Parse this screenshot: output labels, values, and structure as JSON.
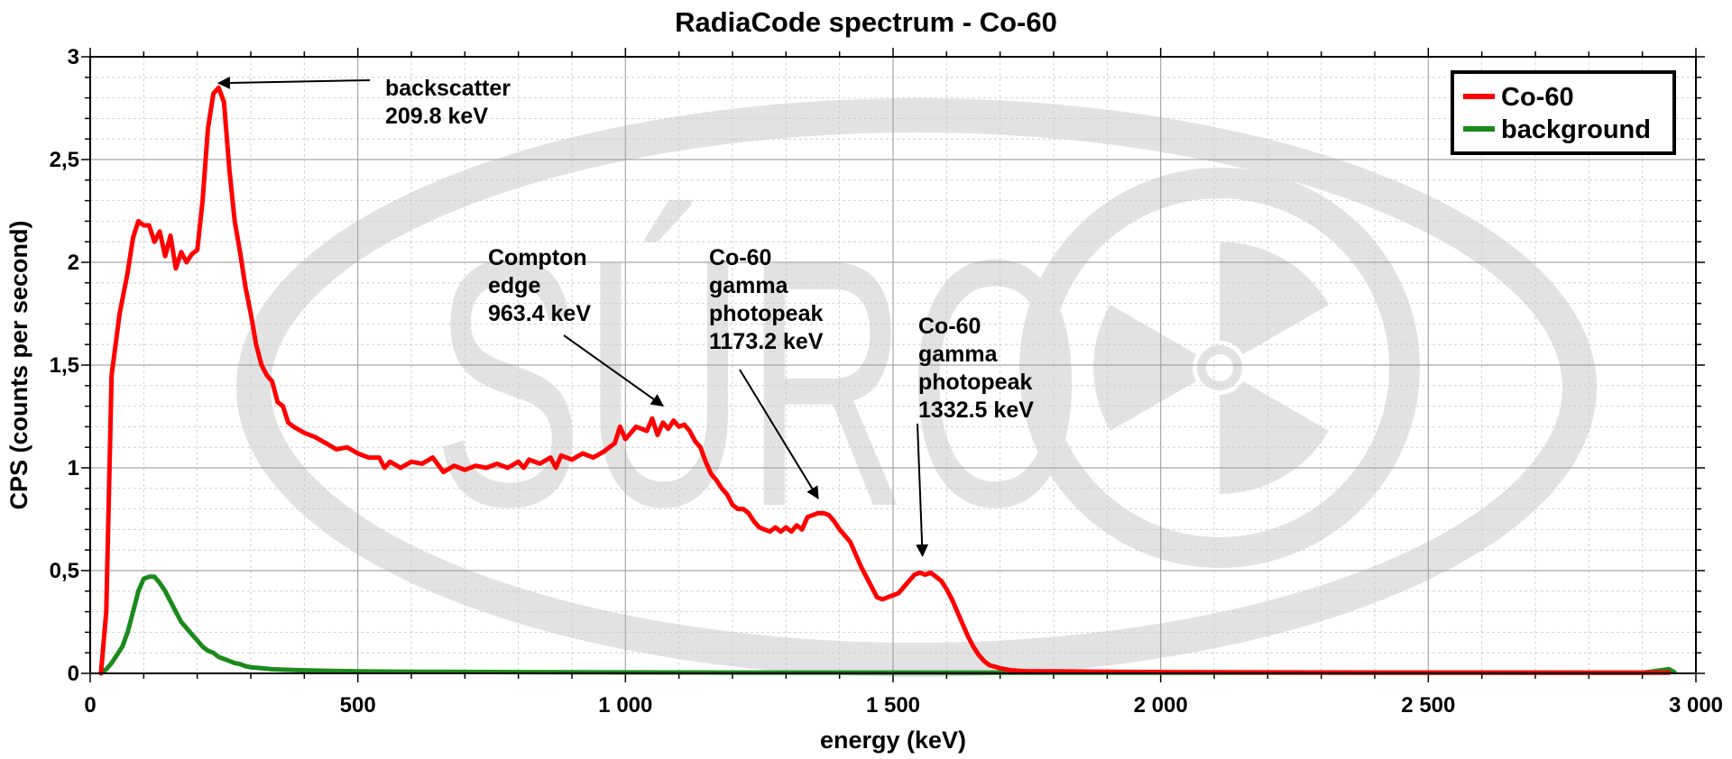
{
  "chart_data": {
    "type": "line",
    "title": "RadiaCode spectrum - Co-60",
    "xlabel": "energy (keV)",
    "ylabel": "CPS (counts per second)",
    "xlim": [
      0,
      3000
    ],
    "ylim": [
      0,
      3
    ],
    "x_ticks": [
      "0",
      "500",
      "1 000",
      "1 500",
      "2 000",
      "2 500",
      "3 000"
    ],
    "y_ticks": [
      "0",
      "0,5",
      "1",
      "1,5",
      "2",
      "2,5",
      "3"
    ],
    "grid": true,
    "legend_position": "top-right",
    "series": [
      {
        "name": "Co-60",
        "color": "#ff0000",
        "points": [
          [
            20,
            0
          ],
          [
            30,
            0.3
          ],
          [
            40,
            1.45
          ],
          [
            55,
            1.75
          ],
          [
            70,
            1.95
          ],
          [
            80,
            2.12
          ],
          [
            90,
            2.2
          ],
          [
            100,
            2.18
          ],
          [
            110,
            2.18
          ],
          [
            120,
            2.1
          ],
          [
            130,
            2.15
          ],
          [
            140,
            2.03
          ],
          [
            150,
            2.13
          ],
          [
            160,
            1.97
          ],
          [
            170,
            2.05
          ],
          [
            180,
            2.0
          ],
          [
            190,
            2.04
          ],
          [
            200,
            2.06
          ],
          [
            210,
            2.3
          ],
          [
            220,
            2.65
          ],
          [
            230,
            2.82
          ],
          [
            240,
            2.85
          ],
          [
            250,
            2.78
          ],
          [
            260,
            2.45
          ],
          [
            270,
            2.2
          ],
          [
            280,
            2.05
          ],
          [
            290,
            1.88
          ],
          [
            300,
            1.75
          ],
          [
            310,
            1.6
          ],
          [
            320,
            1.5
          ],
          [
            330,
            1.45
          ],
          [
            340,
            1.42
          ],
          [
            350,
            1.32
          ],
          [
            360,
            1.3
          ],
          [
            370,
            1.22
          ],
          [
            380,
            1.2
          ],
          [
            400,
            1.17
          ],
          [
            420,
            1.15
          ],
          [
            440,
            1.12
          ],
          [
            460,
            1.09
          ],
          [
            480,
            1.1
          ],
          [
            500,
            1.07
          ],
          [
            520,
            1.05
          ],
          [
            540,
            1.05
          ],
          [
            550,
            1.0
          ],
          [
            560,
            1.03
          ],
          [
            580,
            1.0
          ],
          [
            600,
            1.03
          ],
          [
            620,
            1.02
          ],
          [
            640,
            1.05
          ],
          [
            660,
            0.98
          ],
          [
            680,
            1.01
          ],
          [
            700,
            0.99
          ],
          [
            720,
            1.01
          ],
          [
            740,
            1.0
          ],
          [
            760,
            1.02
          ],
          [
            780,
            1.0
          ],
          [
            800,
            1.03
          ],
          [
            810,
            1.0
          ],
          [
            820,
            1.04
          ],
          [
            840,
            1.02
          ],
          [
            860,
            1.05
          ],
          [
            870,
            1.0
          ],
          [
            880,
            1.06
          ],
          [
            900,
            1.04
          ],
          [
            920,
            1.07
          ],
          [
            940,
            1.05
          ],
          [
            960,
            1.08
          ],
          [
            980,
            1.12
          ],
          [
            990,
            1.2
          ],
          [
            1000,
            1.14
          ],
          [
            1020,
            1.2
          ],
          [
            1040,
            1.18
          ],
          [
            1050,
            1.24
          ],
          [
            1060,
            1.16
          ],
          [
            1070,
            1.22
          ],
          [
            1080,
            1.19
          ],
          [
            1090,
            1.23
          ],
          [
            1100,
            1.2
          ],
          [
            1110,
            1.21
          ],
          [
            1120,
            1.18
          ],
          [
            1130,
            1.13
          ],
          [
            1140,
            1.1
          ],
          [
            1150,
            1.03
          ],
          [
            1160,
            0.97
          ],
          [
            1170,
            0.94
          ],
          [
            1180,
            0.9
          ],
          [
            1190,
            0.87
          ],
          [
            1200,
            0.82
          ],
          [
            1210,
            0.8
          ],
          [
            1220,
            0.8
          ],
          [
            1230,
            0.78
          ],
          [
            1240,
            0.74
          ],
          [
            1250,
            0.71
          ],
          [
            1260,
            0.7
          ],
          [
            1270,
            0.69
          ],
          [
            1280,
            0.71
          ],
          [
            1290,
            0.69
          ],
          [
            1300,
            0.71
          ],
          [
            1310,
            0.69
          ],
          [
            1320,
            0.72
          ],
          [
            1330,
            0.7
          ],
          [
            1340,
            0.76
          ],
          [
            1350,
            0.77
          ],
          [
            1360,
            0.78
          ],
          [
            1370,
            0.78
          ],
          [
            1380,
            0.77
          ],
          [
            1390,
            0.74
          ],
          [
            1400,
            0.7
          ],
          [
            1410,
            0.67
          ],
          [
            1420,
            0.64
          ],
          [
            1430,
            0.58
          ],
          [
            1440,
            0.52
          ],
          [
            1450,
            0.47
          ],
          [
            1460,
            0.42
          ],
          [
            1470,
            0.37
          ],
          [
            1480,
            0.36
          ],
          [
            1490,
            0.37
          ],
          [
            1500,
            0.38
          ],
          [
            1510,
            0.39
          ],
          [
            1520,
            0.42
          ],
          [
            1530,
            0.45
          ],
          [
            1540,
            0.48
          ],
          [
            1550,
            0.49
          ],
          [
            1560,
            0.48
          ],
          [
            1570,
            0.49
          ],
          [
            1580,
            0.47
          ],
          [
            1590,
            0.45
          ],
          [
            1600,
            0.41
          ],
          [
            1610,
            0.36
          ],
          [
            1620,
            0.3
          ],
          [
            1630,
            0.24
          ],
          [
            1640,
            0.18
          ],
          [
            1650,
            0.13
          ],
          [
            1660,
            0.09
          ],
          [
            1670,
            0.06
          ],
          [
            1680,
            0.04
          ],
          [
            1700,
            0.025
          ],
          [
            1720,
            0.015
          ],
          [
            1750,
            0.01
          ],
          [
            1800,
            0.01
          ],
          [
            1900,
            0.008
          ],
          [
            2000,
            0.006
          ],
          [
            2200,
            0.005
          ],
          [
            2400,
            0.004
          ],
          [
            2600,
            0.004
          ],
          [
            2800,
            0.003
          ],
          [
            2950,
            0.003
          ]
        ]
      },
      {
        "name": "background",
        "color": "#1b8a1b",
        "points": [
          [
            20,
            0
          ],
          [
            30,
            0.02
          ],
          [
            40,
            0.05
          ],
          [
            50,
            0.09
          ],
          [
            60,
            0.13
          ],
          [
            70,
            0.2
          ],
          [
            80,
            0.3
          ],
          [
            90,
            0.4
          ],
          [
            100,
            0.46
          ],
          [
            110,
            0.47
          ],
          [
            120,
            0.47
          ],
          [
            130,
            0.44
          ],
          [
            140,
            0.4
          ],
          [
            150,
            0.35
          ],
          [
            160,
            0.3
          ],
          [
            170,
            0.25
          ],
          [
            180,
            0.22
          ],
          [
            190,
            0.19
          ],
          [
            200,
            0.16
          ],
          [
            210,
            0.13
          ],
          [
            220,
            0.11
          ],
          [
            230,
            0.1
          ],
          [
            240,
            0.08
          ],
          [
            250,
            0.07
          ],
          [
            260,
            0.06
          ],
          [
            270,
            0.05
          ],
          [
            280,
            0.045
          ],
          [
            290,
            0.035
          ],
          [
            300,
            0.03
          ],
          [
            320,
            0.025
          ],
          [
            340,
            0.02
          ],
          [
            360,
            0.018
          ],
          [
            400,
            0.015
          ],
          [
            450,
            0.012
          ],
          [
            500,
            0.01
          ],
          [
            600,
            0.008
          ],
          [
            800,
            0.006
          ],
          [
            1000,
            0.005
          ],
          [
            1200,
            0.004
          ],
          [
            1500,
            0.004
          ],
          [
            1800,
            0.003
          ],
          [
            2100,
            0.003
          ],
          [
            2400,
            0.003
          ],
          [
            2700,
            0.003
          ],
          [
            2900,
            0.003
          ],
          [
            2950,
            0.02
          ],
          [
            2960,
            0.005
          ]
        ]
      }
    ],
    "annotations": [
      {
        "lines": [
          "backscatter",
          "209.8 keV"
        ],
        "target": [
          240,
          2.85
        ]
      },
      {
        "lines": [
          "Compton",
          "edge",
          "963.4 keV"
        ],
        "target": [
          1070,
          1.28
        ]
      },
      {
        "lines": [
          "Co-60",
          "gamma",
          "photopeak",
          "1173.2 keV"
        ],
        "target": [
          1360,
          0.83
        ]
      },
      {
        "lines": [
          "Co-60",
          "gamma",
          "photopeak",
          "1332.5 keV"
        ],
        "target": [
          1555,
          0.55
        ]
      }
    ]
  },
  "watermark": {
    "text": "SÚRO",
    "icon": "radiation-trefoil-icon"
  }
}
